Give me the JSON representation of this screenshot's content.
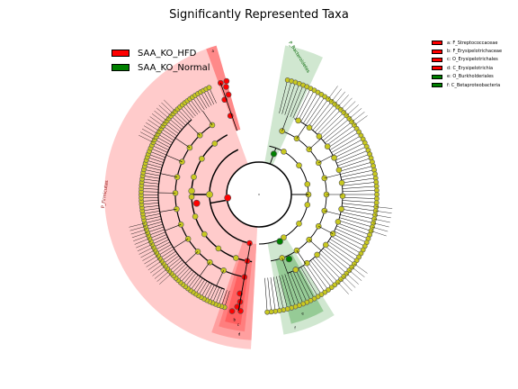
{
  "title": "Significantly Represented Taxa",
  "legend": [
    {
      "label": "SAA_KO_HFD",
      "color": "#ff0000"
    },
    {
      "label": "SAA_KO_Normal",
      "color": "#008000"
    }
  ],
  "taxa_legend": [
    {
      "label": "a: F_Streptococcaceae",
      "color": "#ff0000"
    },
    {
      "label": "b: F_Erysipelotrichaceae",
      "color": "#ff0000"
    },
    {
      "label": "c: O_Erysipelotrichales",
      "color": "#ff0000"
    },
    {
      "label": "d: C_Erysipelotrichia",
      "color": "#ff0000"
    },
    {
      "label": "e: O_Burkholderiales",
      "color": "#008000"
    },
    {
      "label": "f: C_Betaproteobacteria",
      "color": "#008000"
    }
  ],
  "sector_labels": {
    "firmicutes": "P_Firmicutes",
    "bacteroidetes": "P_Bacteroidetes",
    "a": "a",
    "b": "b",
    "c": "c",
    "d": "d",
    "e": "e",
    "f": "f"
  },
  "colors": {
    "hfd_sector": "#ffc8c8",
    "hfd_clade": "#ff6b6b",
    "normal_sector": "#cde6cd",
    "normal_clade": "#8cc68c",
    "node_default": "#c8c820",
    "node_hfd": "#ff0000",
    "node_normal": "#008000"
  }
}
